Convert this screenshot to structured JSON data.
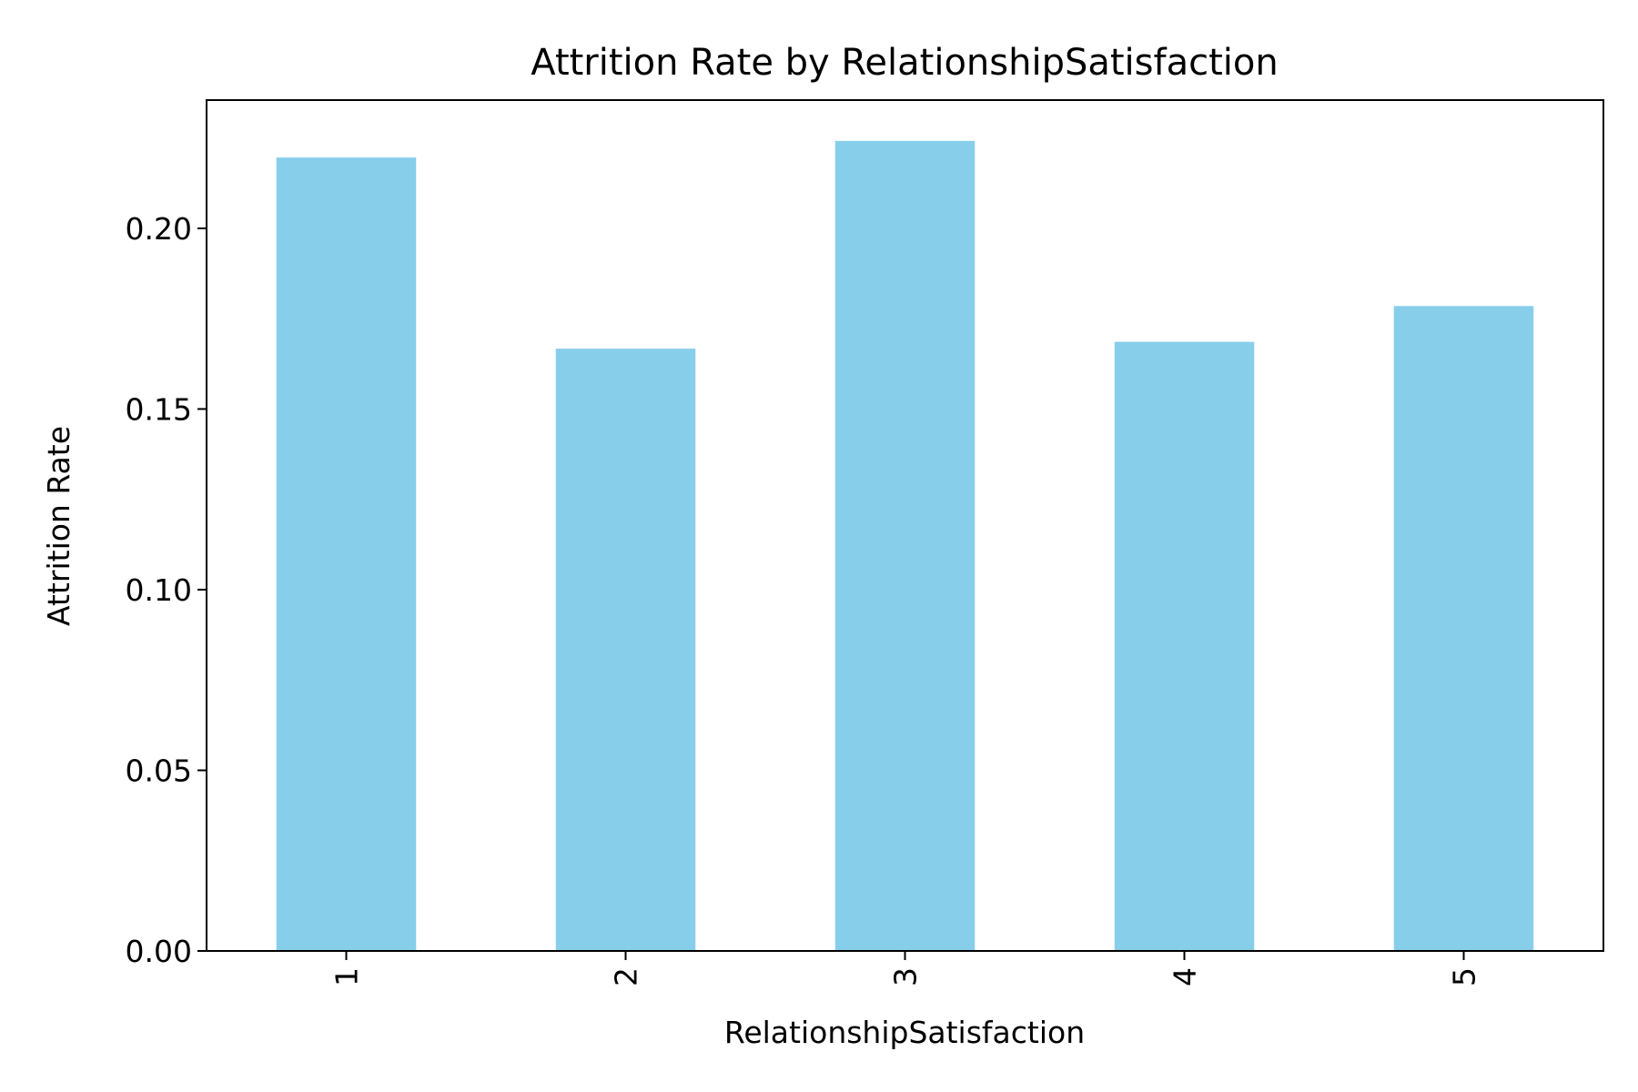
{
  "chart_data": {
    "type": "bar",
    "title": "Attrition Rate by RelationshipSatisfaction",
    "xlabel": "RelationshipSatisfaction",
    "ylabel": "Attrition Rate",
    "categories": [
      "1",
      "2",
      "3",
      "4",
      "5"
    ],
    "values": [
      0.2196,
      0.1667,
      0.2242,
      0.1686,
      0.1785
    ],
    "ylim": [
      0,
      0.2355
    ],
    "yticks": [
      0.0,
      0.05,
      0.1,
      0.15,
      0.2
    ],
    "ytick_labels": [
      "0.00",
      "0.05",
      "0.10",
      "0.15",
      "0.20"
    ],
    "xtick_rotation": 90,
    "grid": false,
    "legend": "none",
    "colors": {
      "bar": "#87CEEB",
      "axes": "#000000",
      "background": "#ffffff"
    }
  }
}
